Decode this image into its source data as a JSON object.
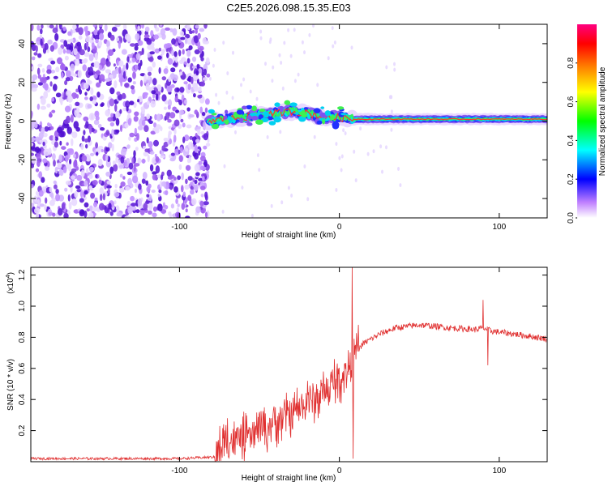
{
  "figure": {
    "title": "C2E5.2026.098.15.35.E03"
  },
  "chart_data": [
    {
      "type": "heatmap",
      "name": "spectrogram",
      "xlabel": "Height of straight line (km)",
      "ylabel": "Frequency (Hz)",
      "xlim": [
        -193,
        130
      ],
      "ylim": [
        -50,
        50
      ],
      "xticks": [
        -100,
        0,
        100
      ],
      "xtick_labels": [
        "-100",
        "0",
        "100"
      ],
      "yticks": [
        -40,
        -20,
        0,
        20,
        40
      ],
      "ytick_labels": [
        "-40",
        "-20",
        "0",
        "20",
        "40"
      ],
      "noise_region_end_km": -82,
      "signal_line": {
        "description_points": [
          [
            -82,
            0
          ],
          [
            -70,
            1
          ],
          [
            -60,
            2
          ],
          [
            -50,
            3
          ],
          [
            -40,
            4
          ],
          [
            -30,
            5
          ],
          [
            -20,
            4
          ],
          [
            -10,
            2
          ],
          [
            0,
            2
          ],
          [
            10,
            1
          ],
          [
            40,
            1
          ],
          [
            80,
            1
          ],
          [
            100,
            1
          ],
          [
            130,
            1
          ]
        ]
      },
      "colorbar": {
        "label": "Normalized spectral amplitude",
        "range": [
          0,
          1
        ],
        "ticks": [
          0.0,
          0.2,
          0.4,
          0.6,
          0.8
        ],
        "tick_labels": [
          "0.0",
          "0.2",
          "0.4",
          "0.6",
          "0.8"
        ],
        "colors": [
          "#ffffff",
          "#c080ff",
          "#0000ff",
          "#00ffff",
          "#00ff00",
          "#ffff00",
          "#ff8000",
          "#ff0000",
          "#ff0080"
        ]
      }
    },
    {
      "type": "line",
      "name": "snr",
      "xlabel": "Height of straight line (km)",
      "ylabel": "SNR (10 * v/v)",
      "y_multiplier_label": "(x10",
      "y_multiplier_exp": "4",
      "y_multiplier_close": ")",
      "xlim": [
        -193,
        130
      ],
      "ylim": [
        0,
        1.25
      ],
      "xticks": [
        -100,
        0,
        100
      ],
      "xtick_labels": [
        "-100",
        "0",
        "100"
      ],
      "yticks": [
        0.2,
        0.4,
        0.6,
        0.8,
        1.0,
        1.2
      ],
      "ytick_labels": [
        "0.2",
        "0.4",
        "0.6",
        "0.8",
        "1.0",
        "1.2"
      ],
      "color": "#e03030",
      "trend_points": [
        [
          -193,
          0.02
        ],
        [
          -150,
          0.02
        ],
        [
          -100,
          0.02
        ],
        [
          -78,
          0.03
        ],
        [
          -72,
          0.12
        ],
        [
          -65,
          0.14
        ],
        [
          -55,
          0.16
        ],
        [
          -45,
          0.24
        ],
        [
          -35,
          0.28
        ],
        [
          -25,
          0.34
        ],
        [
          -15,
          0.4
        ],
        [
          -5,
          0.48
        ],
        [
          2,
          0.55
        ],
        [
          6,
          0.6
        ],
        [
          10,
          0.7
        ],
        [
          15,
          0.76
        ],
        [
          25,
          0.82
        ],
        [
          35,
          0.86
        ],
        [
          50,
          0.88
        ],
        [
          70,
          0.86
        ],
        [
          85,
          0.85
        ],
        [
          90,
          0.86
        ],
        [
          95,
          0.84
        ],
        [
          110,
          0.82
        ],
        [
          130,
          0.79
        ]
      ],
      "spikes": [
        [
          -70,
          0.28
        ],
        [
          -66,
          0.05
        ],
        [
          -50,
          0.32
        ],
        [
          -45,
          0.06
        ],
        [
          -30,
          0.38
        ],
        [
          -20,
          0.52
        ],
        [
          -10,
          0.58
        ],
        [
          -3,
          0.66
        ],
        [
          8,
          1.25
        ],
        [
          8.5,
          0.02
        ],
        [
          12,
          0.88
        ],
        [
          90,
          1.04
        ],
        [
          93,
          0.62
        ]
      ]
    }
  ]
}
